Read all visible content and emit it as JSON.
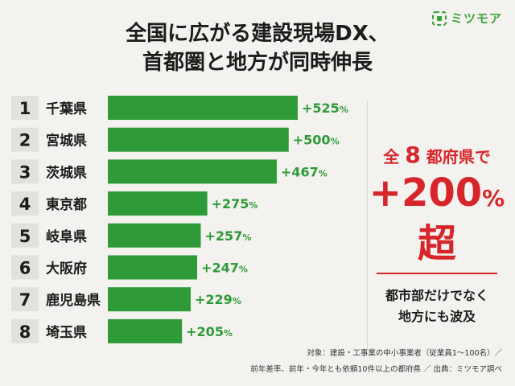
{
  "brand": {
    "name": "ミツモア",
    "color": "#3aa339"
  },
  "title_lines": [
    "全国に広がる建設現場DX、",
    "首都圏と地方が同時伸長"
  ],
  "chart_data": {
    "type": "bar",
    "orientation": "horizontal",
    "title": "",
    "xlabel": "",
    "ylabel": "",
    "ranks": [
      "1",
      "2",
      "3",
      "4",
      "5",
      "6",
      "7",
      "8"
    ],
    "categories": [
      "千葉県",
      "宮城県",
      "茨城県",
      "東京都",
      "岐阜県",
      "大阪府",
      "鹿児島県",
      "埼玉県"
    ],
    "values": [
      525,
      500,
      467,
      275,
      257,
      247,
      229,
      205
    ],
    "value_labels": [
      "+525",
      "+500",
      "+467",
      "+275",
      "+257",
      "+247",
      "+229",
      "+205"
    ],
    "unit": "%",
    "bar_color": "#2e9a38",
    "xlim": [
      0,
      525
    ]
  },
  "callout": {
    "line1_pre": "全",
    "line1_num": "8",
    "line1_post": "都府県で",
    "line2_num": "+200",
    "line2_pct": "%",
    "line2_post": "超",
    "sub_lines": [
      "都市部だけでなく",
      "地方にも波及"
    ],
    "color": "#d7262b"
  },
  "footnotes": [
    "対象：建設・工事業の中小事業者（従業員1〜100名）／",
    "前年差率、前年・今年とも依頼10件以上の都府県 ／ 出典：ミツモア調べ"
  ]
}
